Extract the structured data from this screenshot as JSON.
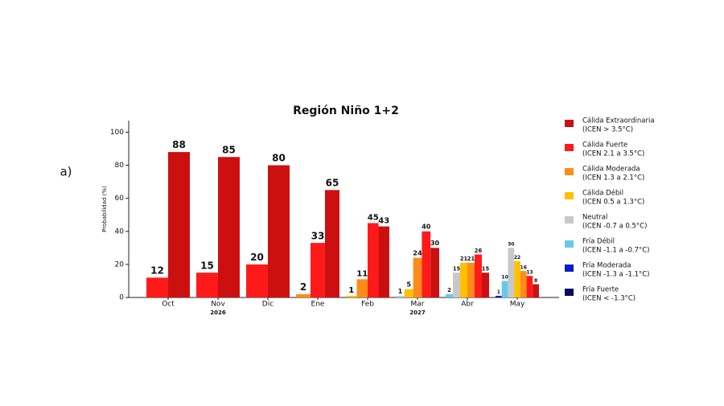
{
  "chart_data": {
    "type": "bar",
    "title": "Región Niño 1+2",
    "panel_label": "a)",
    "y_label": "Probabilidad (%)",
    "categories": [
      "Oct",
      "Nov",
      "Dic",
      "Ene",
      "Feb",
      "Mar",
      "Abr",
      "May"
    ],
    "year_labels": [
      null,
      "2026",
      null,
      null,
      null,
      "2027",
      null,
      null
    ],
    "ylim": [
      0,
      108
    ],
    "yticks": [
      0,
      20,
      40,
      60,
      80,
      100
    ],
    "grid": false,
    "legend": "right",
    "series": [
      {
        "name": "Cálida Extraordinaria",
        "range": "(ICEN > 3.5°C)",
        "color": "#cc1010",
        "values": [
          88,
          85,
          80,
          65,
          43,
          30,
          15,
          8
        ]
      },
      {
        "name": "Cálida Fuerte",
        "range": "(ICEN 2.1 a 3.5°C)",
        "color": "#ff1a1a",
        "values": [
          12,
          15,
          20,
          33,
          45,
          40,
          26,
          13
        ]
      },
      {
        "name": "Cálida Moderada",
        "range": "(ICEN 1.3 a 2.1°C)",
        "color": "#ff8c1a",
        "values": [
          null,
          null,
          null,
          2,
          11,
          24,
          21,
          16
        ]
      },
      {
        "name": "Cálida Débil",
        "range": "(ICEN 0.5 a 1.3°C)",
        "color": "#ffc000",
        "values": [
          null,
          null,
          null,
          null,
          1,
          5,
          21,
          22
        ]
      },
      {
        "name": "Neutral",
        "range": "(ICEN -0.7 a 0.5°C)",
        "color": "#c8c8c8",
        "values": [
          null,
          null,
          null,
          null,
          null,
          1,
          15,
          30
        ]
      },
      {
        "name": "Fría Débil",
        "range": "(ICEN -1.1 a -0.7°C)",
        "color": "#66c8ee",
        "values": [
          null,
          null,
          null,
          null,
          null,
          null,
          2,
          10
        ]
      },
      {
        "name": "Fría Moderada",
        "range": "(ICEN -1.3 a -1.1°C)",
        "color": "#0a1acc",
        "values": [
          null,
          null,
          null,
          null,
          null,
          null,
          null,
          1
        ]
      },
      {
        "name": "Fría Fuerte",
        "range": "(ICEN < -1.3°C)",
        "color": "#0a0a66",
        "values": [
          null,
          null,
          null,
          null,
          null,
          null,
          null,
          null
        ]
      }
    ]
  }
}
